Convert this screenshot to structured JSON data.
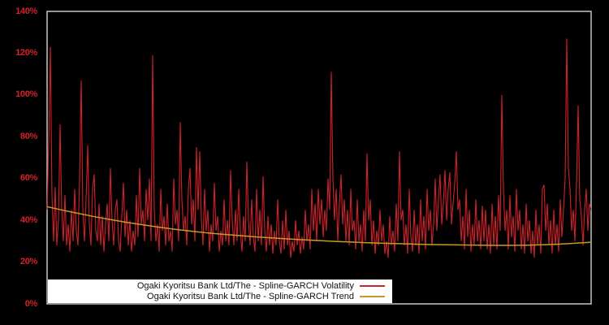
{
  "chart_data": {
    "type": "line",
    "title": "",
    "xlabel": "",
    "ylabel": "",
    "ylim": [
      0,
      140
    ],
    "grid": false,
    "legend_position": "bottom-center",
    "yticks": [
      "0%",
      "20%",
      "40%",
      "60%",
      "80%",
      "100%",
      "120%",
      "140%"
    ],
    "series": [
      {
        "name": "Ogaki Kyoritsu Bank Ltd/The - Spline-GARCH Volatility",
        "key": "volatility",
        "color": "#d2202a",
        "unit": "%",
        "values": [
          45,
          78,
          123,
          52,
          30,
          56,
          28,
          40,
          86,
          45,
          30,
          52,
          28,
          38,
          25,
          45,
          30,
          55,
          35,
          28,
          60,
          107,
          45,
          30,
          50,
          76,
          38,
          28,
          55,
          62,
          35,
          30,
          48,
          28,
          42,
          25,
          38,
          48,
          30,
          65,
          40,
          28,
          45,
          50,
          30,
          25,
          42,
          58,
          32,
          45,
          28,
          40,
          25,
          35,
          28,
          52,
          32,
          65,
          38,
          45,
          30,
          55,
          40,
          60,
          30,
          119,
          45,
          30,
          38,
          25,
          55,
          35,
          42,
          28,
          48,
          30,
          35,
          25,
          60,
          38,
          45,
          30,
          87,
          50,
          35,
          42,
          28,
          55,
          65,
          38,
          50,
          30,
          75,
          45,
          73,
          40,
          28,
          55,
          35,
          45,
          25,
          38,
          30,
          58,
          35,
          42,
          25,
          35,
          28,
          50,
          30,
          40,
          28,
          64,
          40,
          28,
          45,
          30,
          55,
          35,
          25,
          42,
          30,
          68,
          40,
          28,
          50,
          32,
          25,
          55,
          30,
          45,
          28,
          61,
          35,
          25,
          42,
          28,
          38,
          24,
          35,
          28,
          50,
          30,
          24,
          40,
          26,
          45,
          28,
          35,
          22,
          30,
          25,
          40,
          28,
          35,
          24,
          32,
          26,
          45,
          30,
          38,
          26,
          55,
          35,
          48,
          30,
          55,
          38,
          50,
          32,
          45,
          35,
          60,
          45,
          111,
          60,
          40,
          55,
          30,
          48,
          62,
          38,
          50,
          30,
          45,
          28,
          55,
          35,
          40,
          26,
          50,
          30,
          38,
          25,
          45,
          30,
          72,
          40,
          50,
          28,
          40,
          24,
          35,
          28,
          45,
          30,
          38,
          24,
          30,
          22,
          42,
          28,
          35,
          25,
          48,
          30,
          73,
          40,
          45,
          28,
          38,
          24,
          55,
          32,
          25,
          45,
          28,
          38,
          24,
          50,
          30,
          42,
          26,
          55,
          35,
          45,
          28,
          38,
          60,
          35,
          50,
          62,
          38,
          48,
          64,
          40,
          55,
          63,
          38,
          48,
          58,
          73,
          45,
          50,
          30,
          42,
          26,
          55,
          32,
          45,
          25,
          38,
          28,
          50,
          30,
          40,
          26,
          47,
          30,
          45,
          26,
          38,
          24,
          48,
          28,
          42,
          26,
          52,
          35,
          100,
          55,
          35,
          45,
          26,
          52,
          32,
          42,
          25,
          55,
          35,
          45,
          26,
          38,
          24,
          48,
          30,
          40,
          24,
          35,
          22,
          45,
          28,
          38,
          24,
          55,
          57,
          35,
          48,
          28,
          40,
          24,
          45,
          28,
          38,
          25,
          50,
          32,
          45,
          60,
          127,
          65,
          55,
          35,
          45,
          30,
          58,
          95,
          50,
          42,
          28,
          45,
          55,
          35,
          48,
          45
        ]
      },
      {
        "name": "Ogaki Kyoritsu Bank Ltd/The - Spline-GARCH Trend",
        "key": "trend",
        "color": "#c79a27",
        "unit": "%",
        "values": [
          46.5,
          44.8,
          43.2,
          41.7,
          40.3,
          39.0,
          37.8,
          36.7,
          35.7,
          34.8,
          34.0,
          33.3,
          32.7,
          32.1,
          31.6,
          31.1,
          30.7,
          30.3,
          29.9,
          29.6,
          29.3,
          29.0,
          28.8,
          28.6,
          28.4,
          28.3,
          28.2,
          28.1,
          28.0,
          28.0,
          28.1,
          28.3,
          28.6,
          29.0,
          29.5
        ]
      }
    ]
  },
  "frame": {
    "color": "#c6c6c6",
    "background": "#000000"
  }
}
